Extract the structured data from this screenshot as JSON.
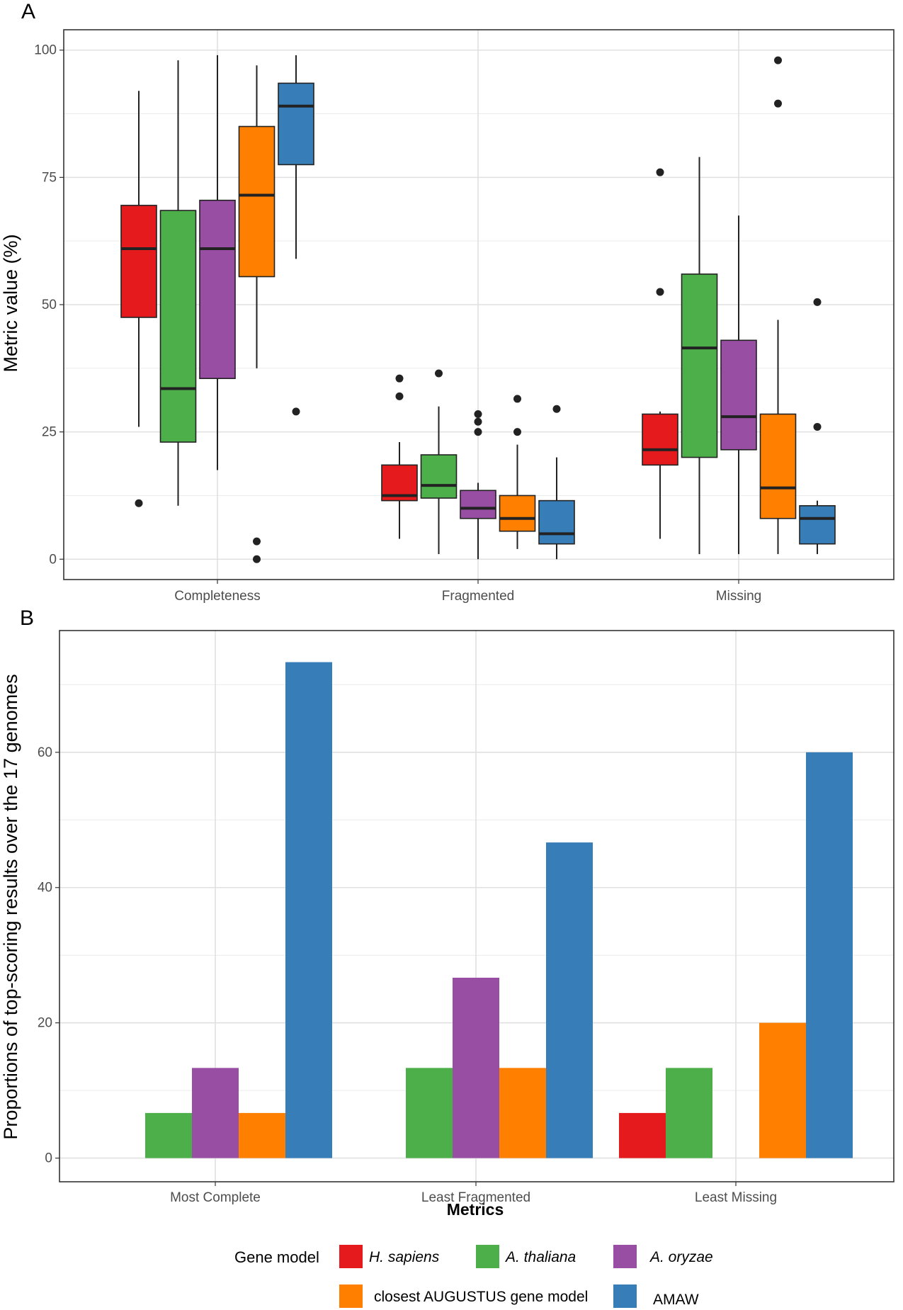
{
  "colors": {
    "H. sapiens": "#e41a1c",
    "A. thaliana": "#4daf4a",
    "A. oryzae": "#984ea3",
    "closest AUGUSTUS gene model": "#ff7f00",
    "AMAW": "#377eb8"
  },
  "chart_data": [
    {
      "panel": "A",
      "type": "box",
      "xlabel": "",
      "ylabel": "Metric value (%)",
      "ylim": [
        -4,
        104
      ],
      "yticks": [
        0,
        25,
        50,
        75,
        100
      ],
      "categories": [
        "Completeness",
        "Fragmented",
        "Missing"
      ],
      "grid": true,
      "series": [
        {
          "name": "H. sapiens",
          "boxes": [
            {
              "min": 26,
              "q1": 47.5,
              "median": 61,
              "q3": 69.5,
              "max": 92,
              "outliers": [
                11
              ]
            },
            {
              "min": 4,
              "q1": 11.5,
              "median": 12.5,
              "q3": 18.5,
              "max": 23,
              "outliers": [
                32,
                35.5
              ]
            },
            {
              "min": 4,
              "q1": 18.5,
              "median": 21.5,
              "q3": 28.5,
              "max": 29,
              "outliers": [
                52.5,
                76
              ]
            }
          ]
        },
        {
          "name": "A. thaliana",
          "boxes": [
            {
              "min": 10.5,
              "q1": 23,
              "median": 33.5,
              "q3": 68.5,
              "max": 98,
              "outliers": []
            },
            {
              "min": 1,
              "q1": 12,
              "median": 14.5,
              "q3": 20.5,
              "max": 30,
              "outliers": [
                36.5
              ]
            },
            {
              "min": 1,
              "q1": 20,
              "median": 41.5,
              "q3": 56,
              "max": 79,
              "outliers": []
            }
          ]
        },
        {
          "name": "A. oryzae",
          "boxes": [
            {
              "min": 17.5,
              "q1": 35.5,
              "median": 61,
              "q3": 70.5,
              "max": 99,
              "outliers": []
            },
            {
              "min": 0,
              "q1": 8,
              "median": 10,
              "q3": 13.5,
              "max": 15,
              "outliers": [
                25,
                27,
                28.5
              ]
            },
            {
              "min": 1,
              "q1": 21.5,
              "median": 28,
              "q3": 43,
              "max": 67.5,
              "outliers": []
            }
          ]
        },
        {
          "name": "closest AUGUSTUS gene model",
          "boxes": [
            {
              "min": 37.5,
              "q1": 55.5,
              "median": 71.5,
              "q3": 85,
              "max": 97,
              "outliers": [
                0,
                3.5
              ]
            },
            {
              "min": 2,
              "q1": 5.5,
              "median": 8,
              "q3": 12.5,
              "max": 22.5,
              "outliers": [
                25,
                31.5
              ]
            },
            {
              "min": 1,
              "q1": 8,
              "median": 14,
              "q3": 28.5,
              "max": 47,
              "outliers": [
                89.5,
                98
              ]
            }
          ]
        },
        {
          "name": "AMAW",
          "boxes": [
            {
              "min": 59,
              "q1": 77.5,
              "median": 89,
              "q3": 93.5,
              "max": 99,
              "outliers": [
                29
              ]
            },
            {
              "min": 0,
              "q1": 3,
              "median": 5,
              "q3": 11.5,
              "max": 20,
              "outliers": [
                29.5
              ]
            },
            {
              "min": 1,
              "q1": 3,
              "median": 8,
              "q3": 10.5,
              "max": 11.5,
              "outliers": [
                26,
                50.5
              ]
            }
          ]
        }
      ]
    },
    {
      "panel": "B",
      "type": "bar",
      "xlabel": "Metrics",
      "ylabel": "Proportions of top-scoring results over the 17 genomes",
      "ylim": [
        -3.5,
        78
      ],
      "yticks": [
        0,
        20,
        40,
        60
      ],
      "categories": [
        "Most Complete",
        "Least Fragmented",
        "Least Missing"
      ],
      "grid": true,
      "series": [
        {
          "name": "H. sapiens",
          "values": [
            0,
            0,
            6.67
          ]
        },
        {
          "name": "A. thaliana",
          "values": [
            6.67,
            13.33,
            13.33
          ]
        },
        {
          "name": "A. oryzae",
          "values": [
            13.33,
            26.67,
            0
          ]
        },
        {
          "name": "closest AUGUSTUS gene model",
          "values": [
            6.67,
            13.33,
            20
          ]
        },
        {
          "name": "AMAW",
          "values": [
            73.33,
            46.67,
            60
          ]
        }
      ]
    }
  ],
  "legend": {
    "title": "Gene model",
    "items": [
      {
        "label": "H. sapiens",
        "italic": true
      },
      {
        "label": "A. thaliana",
        "italic": true
      },
      {
        "label": "A. oryzae",
        "italic": true
      },
      {
        "label": "closest AUGUSTUS gene model",
        "italic": false
      },
      {
        "label": "AMAW",
        "italic": false
      }
    ]
  },
  "panel_labels": {
    "a": "A",
    "b": "B"
  }
}
